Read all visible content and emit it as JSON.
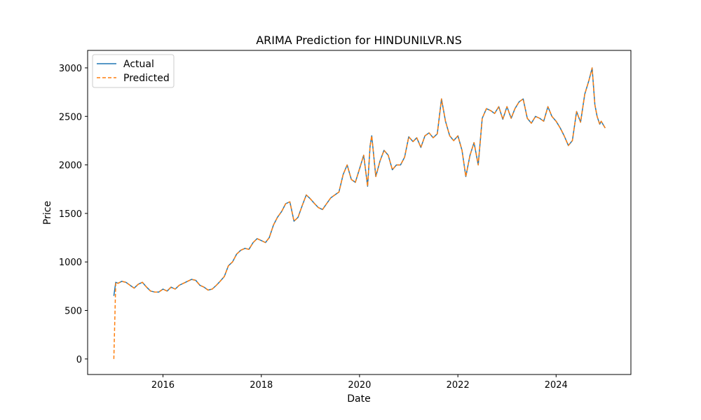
{
  "chart_data": {
    "type": "line",
    "title": "ARIMA Prediction for HINDUNILVR.NS",
    "xlabel": "Date",
    "ylabel": "Price",
    "xlim": [
      "2014-06-20",
      "2025-07-10"
    ],
    "ylim": [
      -160,
      3180
    ],
    "x_ticks": [
      "2016",
      "2018",
      "2020",
      "2022",
      "2024"
    ],
    "y_ticks": [
      0,
      500,
      1000,
      1500,
      2000,
      2500,
      3000
    ],
    "grid": false,
    "legend": {
      "position": "top-left",
      "entries": [
        "Actual",
        "Predicted"
      ]
    },
    "colors": {
      "actual": "#1f77b4",
      "predicted": "#ff7f0e"
    },
    "x": [
      "2015-01-01",
      "2015-01-15",
      "2015-02-01",
      "2015-03-01",
      "2015-04-01",
      "2015-05-01",
      "2015-06-01",
      "2015-07-01",
      "2015-08-01",
      "2015-09-01",
      "2015-10-01",
      "2015-11-01",
      "2015-12-01",
      "2016-01-01",
      "2016-02-01",
      "2016-03-01",
      "2016-04-01",
      "2016-05-01",
      "2016-06-01",
      "2016-07-01",
      "2016-08-01",
      "2016-09-01",
      "2016-10-01",
      "2016-11-01",
      "2016-12-01",
      "2017-01-01",
      "2017-02-01",
      "2017-03-01",
      "2017-04-01",
      "2017-05-01",
      "2017-06-01",
      "2017-07-01",
      "2017-08-01",
      "2017-09-01",
      "2017-10-01",
      "2017-11-01",
      "2017-12-01",
      "2018-01-01",
      "2018-02-01",
      "2018-03-01",
      "2018-04-01",
      "2018-05-01",
      "2018-06-01",
      "2018-07-01",
      "2018-08-01",
      "2018-09-01",
      "2018-10-01",
      "2018-11-01",
      "2018-12-01",
      "2019-01-01",
      "2019-02-01",
      "2019-03-01",
      "2019-04-01",
      "2019-05-01",
      "2019-06-01",
      "2019-07-01",
      "2019-08-01",
      "2019-09-01",
      "2019-10-01",
      "2019-11-01",
      "2019-12-01",
      "2020-01-01",
      "2020-02-01",
      "2020-03-01",
      "2020-03-20",
      "2020-04-01",
      "2020-05-01",
      "2020-06-01",
      "2020-07-01",
      "2020-08-01",
      "2020-09-01",
      "2020-10-01",
      "2020-11-01",
      "2020-12-01",
      "2021-01-01",
      "2021-02-01",
      "2021-03-01",
      "2021-04-01",
      "2021-05-01",
      "2021-06-01",
      "2021-07-01",
      "2021-08-01",
      "2021-09-01",
      "2021-10-01",
      "2021-11-01",
      "2021-12-01",
      "2022-01-01",
      "2022-02-01",
      "2022-03-01",
      "2022-04-01",
      "2022-05-01",
      "2022-06-01",
      "2022-07-01",
      "2022-08-01",
      "2022-09-01",
      "2022-10-01",
      "2022-11-01",
      "2022-12-01",
      "2023-01-01",
      "2023-02-01",
      "2023-03-01",
      "2023-04-01",
      "2023-05-01",
      "2023-06-01",
      "2023-07-01",
      "2023-08-01",
      "2023-09-01",
      "2023-10-01",
      "2023-11-01",
      "2023-12-01",
      "2024-01-01",
      "2024-02-01",
      "2024-03-01",
      "2024-04-01",
      "2024-05-01",
      "2024-06-01",
      "2024-07-01",
      "2024-08-01",
      "2024-09-01",
      "2024-09-25",
      "2024-10-15",
      "2024-11-01",
      "2024-11-20",
      "2024-12-01",
      "2024-12-31"
    ],
    "series": [
      {
        "name": "Actual",
        "values": [
          650,
          790,
          780,
          800,
          790,
          760,
          730,
          770,
          790,
          740,
          700,
          690,
          690,
          720,
          700,
          740,
          720,
          760,
          780,
          800,
          820,
          810,
          760,
          740,
          710,
          720,
          760,
          800,
          850,
          960,
          1000,
          1080,
          1120,
          1140,
          1130,
          1200,
          1240,
          1220,
          1200,
          1250,
          1380,
          1460,
          1520,
          1600,
          1620,
          1420,
          1460,
          1580,
          1690,
          1650,
          1600,
          1560,
          1540,
          1600,
          1660,
          1690,
          1720,
          1900,
          2000,
          1850,
          1820,
          1960,
          2100,
          1780,
          2200,
          2300,
          1880,
          2040,
          2150,
          2100,
          1950,
          2000,
          2000,
          2080,
          2290,
          2240,
          2280,
          2180,
          2300,
          2330,
          2280,
          2320,
          2680,
          2450,
          2300,
          2250,
          2300,
          2150,
          1880,
          2100,
          2230,
          2000,
          2480,
          2580,
          2560,
          2530,
          2600,
          2470,
          2600,
          2480,
          2580,
          2650,
          2680,
          2480,
          2430,
          2500,
          2480,
          2450,
          2600,
          2500,
          2450,
          2380,
          2300,
          2200,
          2250,
          2550,
          2440,
          2730,
          2870,
          3000,
          2620,
          2500,
          2420,
          2450,
          2380
        ]
      },
      {
        "name": "Predicted",
        "values": [
          0,
          790,
          780,
          800,
          790,
          760,
          730,
          770,
          790,
          740,
          700,
          690,
          690,
          720,
          700,
          740,
          720,
          760,
          780,
          800,
          820,
          810,
          760,
          740,
          710,
          720,
          760,
          800,
          850,
          960,
          1000,
          1080,
          1120,
          1140,
          1130,
          1200,
          1240,
          1220,
          1200,
          1250,
          1380,
          1460,
          1520,
          1600,
          1620,
          1420,
          1460,
          1580,
          1690,
          1650,
          1600,
          1560,
          1540,
          1600,
          1660,
          1690,
          1720,
          1900,
          2000,
          1850,
          1820,
          1960,
          2100,
          1780,
          2200,
          2300,
          1880,
          2040,
          2150,
          2100,
          1950,
          2000,
          2000,
          2080,
          2290,
          2240,
          2280,
          2180,
          2300,
          2330,
          2280,
          2320,
          2680,
          2450,
          2300,
          2250,
          2300,
          2150,
          1880,
          2100,
          2230,
          2000,
          2480,
          2580,
          2560,
          2530,
          2600,
          2470,
          2600,
          2480,
          2580,
          2650,
          2680,
          2480,
          2430,
          2500,
          2480,
          2450,
          2600,
          2500,
          2450,
          2380,
          2300,
          2200,
          2250,
          2550,
          2440,
          2730,
          2870,
          3000,
          2620,
          2500,
          2420,
          2450,
          2380
        ]
      }
    ]
  }
}
